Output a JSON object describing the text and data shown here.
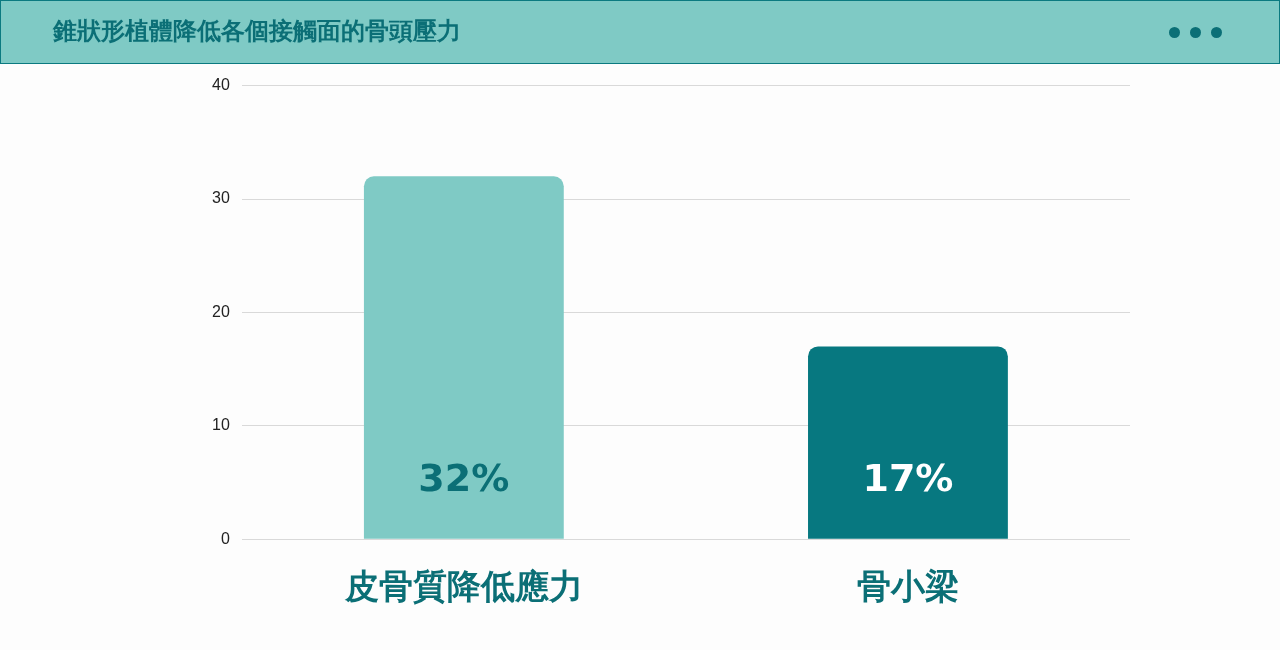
{
  "chart_data": {
    "type": "bar",
    "title": "錐狀形植體降低各個接觸面的骨頭壓力",
    "categories": [
      "皮骨質降低應力",
      "骨小梁"
    ],
    "values": [
      32,
      17
    ],
    "colors": [
      "#7fcac5",
      "#077880"
    ],
    "value_labels": [
      "32%",
      "17%"
    ],
    "ylim": [
      0,
      40
    ],
    "yticks": [
      0,
      10,
      20,
      30,
      40
    ],
    "grid": "y",
    "legend": false
  }
}
